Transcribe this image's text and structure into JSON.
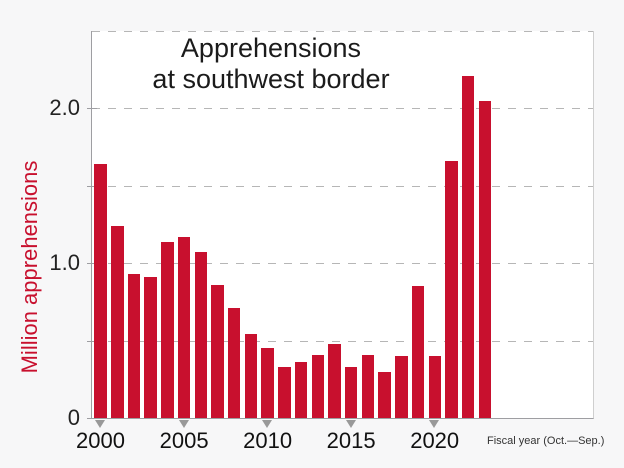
{
  "figure": {
    "title_line1": "Apprehensions",
    "title_line2": "at southwest border",
    "y_axis_title": "Million apprehensions",
    "x_axis_note": "Fiscal year (Oct.—Sep.)",
    "colors": {
      "bar": "#c8102e",
      "background": "#f7f7f8",
      "plot_background": "#ffffff",
      "grid": "#b6b6b6",
      "axis": "#9e9ea2",
      "tick_triangle": "#999999",
      "title_text": "#1b1b1b",
      "tick_label_text": "#222222",
      "y_axis_title_text": "#c8102e",
      "note_text": "#333333"
    }
  },
  "chart_data": {
    "type": "bar",
    "title": "Apprehensions at southwest border",
    "xlabel": "Fiscal year (Oct.—Sep.)",
    "ylabel": "Million apprehensions",
    "ylim": [
      0,
      2.5
    ],
    "grid": "horizontal-dashed",
    "legend": "none",
    "categories": [
      2000,
      2001,
      2002,
      2003,
      2004,
      2005,
      2006,
      2007,
      2008,
      2009,
      2010,
      2011,
      2012,
      2013,
      2014,
      2015,
      2016,
      2017,
      2018,
      2019,
      2020,
      2021,
      2022,
      2023
    ],
    "values": [
      1.64,
      1.24,
      0.93,
      0.91,
      1.14,
      1.17,
      1.07,
      0.86,
      0.71,
      0.54,
      0.45,
      0.33,
      0.36,
      0.41,
      0.48,
      0.33,
      0.41,
      0.3,
      0.4,
      0.85,
      0.4,
      1.66,
      2.21,
      2.05
    ],
    "units": "million apprehensions",
    "grid_values": [
      0.5,
      1.0,
      1.5,
      2.0,
      2.5
    ],
    "y_tick_values": [
      0,
      0.5,
      1.0,
      1.5,
      2.0
    ],
    "y_tick_labels": [
      {
        "value": 2.0,
        "label": "2.0"
      },
      {
        "value": 1.0,
        "label": "1.0"
      },
      {
        "value": 0,
        "label": "0"
      }
    ],
    "x_ticks": [
      {
        "year": 2000,
        "label": "2000"
      },
      {
        "year": 2005,
        "label": "2005"
      },
      {
        "year": 2010,
        "label": "2010"
      },
      {
        "year": 2015,
        "label": "2015"
      },
      {
        "year": 2020,
        "label": "2020"
      }
    ]
  }
}
